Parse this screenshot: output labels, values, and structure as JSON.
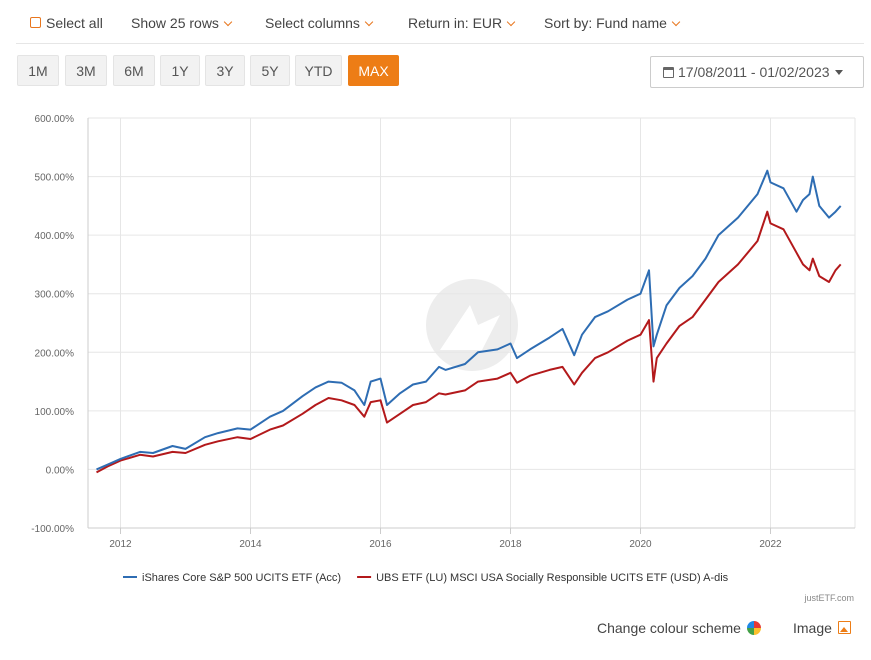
{
  "toolbar": {
    "select_all": "Select all",
    "rows": "Show 25 rows",
    "columns": "Select columns",
    "return": "Return in: EUR",
    "sort": "Sort by: Fund name"
  },
  "periods": [
    "1M",
    "3M",
    "6M",
    "1Y",
    "3Y",
    "5Y",
    "YTD",
    "MAX"
  ],
  "active_period": "MAX",
  "date_range": "17/08/2011 - 01/02/2023",
  "footer": {
    "credit": "justETF.com",
    "colour_scheme": "Change colour scheme",
    "image": "Image"
  },
  "colors": {
    "accent": "#ed7d16",
    "series1": "#2e6db3",
    "series2": "#b3191b"
  },
  "chart_data": {
    "type": "line",
    "y_unit": "%",
    "ylim": [
      -100,
      600
    ],
    "yticks": [
      -100,
      0,
      100,
      200,
      300,
      400,
      500,
      600
    ],
    "ytick_labels": [
      "-100.00%",
      "0.00%",
      "100.00%",
      "200.00%",
      "300.00%",
      "400.00%",
      "500.00%",
      "600.00%"
    ],
    "xlim": [
      2011.5,
      2023.3
    ],
    "xticks": [
      2012,
      2014,
      2016,
      2018,
      2020,
      2022
    ],
    "xtick_labels": [
      "2012",
      "2014",
      "2016",
      "2018",
      "2020",
      "2022"
    ],
    "grid": true,
    "legend_position": "bottom",
    "series": [
      {
        "name": "iShares Core S&P 500 UCITS ETF (Acc)",
        "color": "#2e6db3",
        "x": [
          2011.63,
          2011.8,
          2012.0,
          2012.3,
          2012.5,
          2012.8,
          2013.0,
          2013.3,
          2013.5,
          2013.8,
          2014.0,
          2014.3,
          2014.5,
          2014.8,
          2015.0,
          2015.2,
          2015.4,
          2015.6,
          2015.75,
          2015.85,
          2016.0,
          2016.1,
          2016.3,
          2016.5,
          2016.7,
          2016.9,
          2017.0,
          2017.3,
          2017.5,
          2017.8,
          2018.0,
          2018.1,
          2018.3,
          2018.6,
          2018.8,
          2018.98,
          2019.1,
          2019.3,
          2019.5,
          2019.8,
          2020.0,
          2020.13,
          2020.2,
          2020.25,
          2020.4,
          2020.6,
          2020.8,
          2021.0,
          2021.2,
          2021.5,
          2021.8,
          2021.95,
          2022.0,
          2022.2,
          2022.4,
          2022.5,
          2022.6,
          2022.65,
          2022.75,
          2022.9,
          2023.0,
          2023.08
        ],
        "y": [
          0,
          8,
          18,
          30,
          28,
          40,
          35,
          55,
          62,
          70,
          68,
          90,
          100,
          125,
          140,
          150,
          148,
          135,
          110,
          150,
          155,
          110,
          130,
          145,
          150,
          175,
          170,
          180,
          200,
          205,
          215,
          190,
          205,
          225,
          240,
          195,
          230,
          260,
          270,
          290,
          300,
          340,
          210,
          230,
          280,
          310,
          330,
          360,
          400,
          430,
          470,
          510,
          490,
          480,
          440,
          460,
          470,
          500,
          450,
          430,
          440,
          450
        ]
      },
      {
        "name": "UBS ETF (LU) MSCI USA Socially Responsible UCITS ETF (USD) A-dis",
        "color": "#b3191b",
        "x": [
          2011.63,
          2011.8,
          2012.0,
          2012.3,
          2012.5,
          2012.8,
          2013.0,
          2013.3,
          2013.5,
          2013.8,
          2014.0,
          2014.3,
          2014.5,
          2014.8,
          2015.0,
          2015.2,
          2015.4,
          2015.6,
          2015.75,
          2015.85,
          2016.0,
          2016.1,
          2016.3,
          2016.5,
          2016.7,
          2016.9,
          2017.0,
          2017.3,
          2017.5,
          2017.8,
          2018.0,
          2018.1,
          2018.3,
          2018.6,
          2018.8,
          2018.98,
          2019.1,
          2019.3,
          2019.5,
          2019.8,
          2020.0,
          2020.13,
          2020.2,
          2020.25,
          2020.4,
          2020.6,
          2020.8,
          2021.0,
          2021.2,
          2021.5,
          2021.8,
          2021.95,
          2022.0,
          2022.2,
          2022.4,
          2022.5,
          2022.6,
          2022.65,
          2022.75,
          2022.9,
          2023.0,
          2023.08
        ],
        "y": [
          -5,
          5,
          15,
          25,
          22,
          30,
          28,
          42,
          48,
          55,
          52,
          68,
          75,
          95,
          110,
          122,
          118,
          110,
          90,
          115,
          118,
          80,
          95,
          110,
          115,
          130,
          128,
          135,
          150,
          155,
          165,
          148,
          160,
          170,
          175,
          145,
          165,
          190,
          200,
          220,
          230,
          255,
          150,
          190,
          215,
          245,
          260,
          290,
          320,
          350,
          390,
          440,
          420,
          410,
          370,
          350,
          340,
          360,
          330,
          320,
          340,
          350
        ]
      }
    ]
  }
}
